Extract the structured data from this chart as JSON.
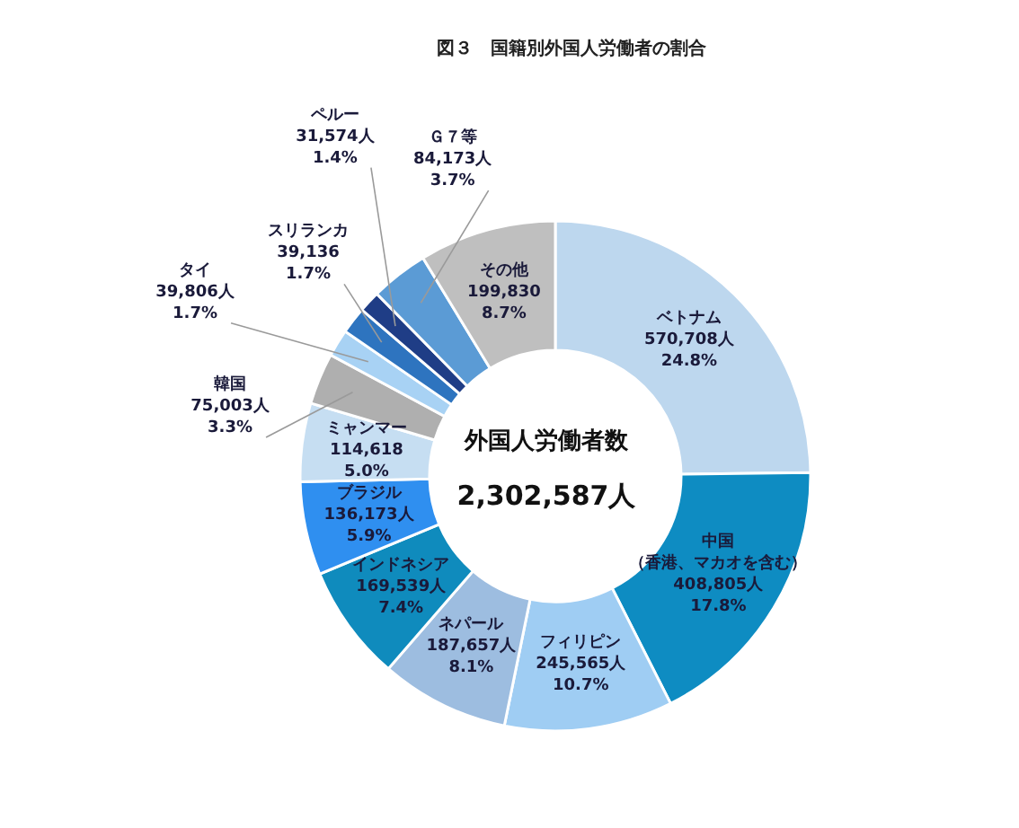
{
  "chart_data": {
    "type": "donut",
    "title": "図３　国籍別外国人労働者の割合",
    "categories": [
      "ベトナム",
      "中国（香港、マカオを含む）",
      "フィリピン",
      "ネパール",
      "インドネシア",
      "ブラジル",
      "ミャンマー",
      "韓国",
      "タイ",
      "スリランカ",
      "ペルー",
      "Ｇ７等",
      "その他"
    ],
    "values": [
      570708,
      408805,
      245565,
      187657,
      169539,
      136173,
      114618,
      75003,
      39806,
      39136,
      31574,
      84173,
      199830
    ],
    "value_labels": [
      "570,708人\n24.8%",
      "408,805人\n17.8%",
      "245,565人\n10.7%",
      "187,657人\n8.1%",
      "169,539人\n7.4%",
      "136,173人\n5.9%",
      "114,618\n5.0%",
      "75,003人\n3.3%",
      "39,806人\n1.7%",
      "39,136\n1.7%",
      "31,574人\n1.4%",
      "84,173人\n3.7%",
      "199,830\n8.7%"
    ],
    "colors": [
      "#bdd7ee",
      "#0e8cc2",
      "#9fcdf3",
      "#9dbde0",
      "#0f8bbd",
      "#2f8ff0",
      "#c6def2",
      "#afafaf",
      "#a8d2f4",
      "#2e74bf",
      "#1f3d86",
      "#5b9bd5",
      "#bfbfbf"
    ],
    "annotations": [
      "外国人労働者数",
      "2,302,587人"
    ],
    "legend": false
  }
}
